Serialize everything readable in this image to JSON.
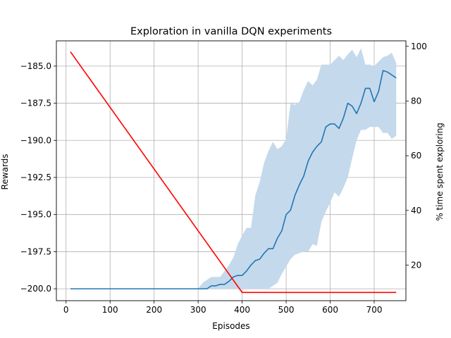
{
  "chart_data": {
    "type": "line",
    "title": "Exploration in vanilla DQN experiments",
    "xlabel": "Episodes",
    "ylabel": "Rewards",
    "y2label": "% time spent exploring",
    "xlim": [
      -22,
      772
    ],
    "ylim": [
      -200.8,
      -183.3
    ],
    "y2lim": [
      7,
      102
    ],
    "grid": true,
    "x_ticks": [
      0,
      100,
      200,
      300,
      400,
      500,
      600,
      700
    ],
    "y_ticks": [
      -200.0,
      -197.5,
      -195.0,
      -192.5,
      -190.0,
      -187.5,
      -185.0
    ],
    "y_tick_labels": [
      "−200.0",
      "−197.5",
      "−195.0",
      "−192.5",
      "−190.0",
      "−187.5",
      "−185.0"
    ],
    "y2_ticks": [
      20,
      40,
      60,
      80,
      100
    ],
    "colors": {
      "reward_line": "#1f77b4",
      "reward_band": "#c5d9ec",
      "exploration_line": "#ff0000",
      "grid": "#b0b0b0"
    },
    "series": [
      {
        "axis": "left",
        "x": [
          10,
          20,
          30,
          40,
          50,
          60,
          70,
          80,
          90,
          100,
          110,
          120,
          130,
          140,
          150,
          160,
          170,
          180,
          190,
          200,
          210,
          220,
          230,
          240,
          250,
          260,
          270,
          280,
          290,
          300,
          310,
          320,
          330,
          340,
          350,
          360,
          370,
          380,
          390,
          400,
          410,
          420,
          430,
          440,
          450,
          460,
          470,
          480,
          490,
          500,
          510,
          520,
          530,
          540,
          550,
          560,
          570,
          580,
          590,
          600,
          610,
          620,
          630,
          640,
          650,
          660,
          670,
          680,
          690,
          700,
          710,
          720,
          730,
          740,
          750
        ],
        "y": [
          -200,
          -200,
          -200,
          -200,
          -200,
          -200,
          -200,
          -200,
          -200,
          -200,
          -200,
          -200,
          -200,
          -200,
          -200,
          -200,
          -200,
          -200,
          -200,
          -200,
          -200,
          -200,
          -200,
          -200,
          -200,
          -200,
          -200,
          -200,
          -200,
          -200,
          -200,
          -200,
          -199.8,
          -199.8,
          -199.7,
          -199.7,
          -199.5,
          -199.2,
          -199.1,
          -199.1,
          -198.8,
          -198.4,
          -198.1,
          -198.0,
          -197.6,
          -197.3,
          -197.3,
          -196.6,
          -196.1,
          -195.0,
          -194.7,
          -193.7,
          -193.0,
          -192.4,
          -191.4,
          -190.8,
          -190.4,
          -190.1,
          -189.1,
          -188.9,
          -188.9,
          -189.2,
          -188.5,
          -187.5,
          -187.7,
          -188.2,
          -187.5,
          -186.5,
          -186.5,
          -187.4,
          -186.7,
          -185.3,
          -185.4,
          -185.6,
          -185.8
        ],
        "y_upper": [
          -200,
          -200,
          -200,
          -200,
          -200,
          -200,
          -200,
          -200,
          -200,
          -200,
          -200,
          -200,
          -200,
          -200,
          -200,
          -200,
          -200,
          -200,
          -200,
          -200,
          -200,
          -200,
          -200,
          -200,
          -200,
          -200,
          -200,
          -200,
          -200,
          -200,
          -199.6,
          -199.4,
          -199.2,
          -199.2,
          -199.2,
          -198.8,
          -198.4,
          -197.9,
          -197.0,
          -196.4,
          -195.9,
          -195.9,
          -193.7,
          -192.8,
          -191.5,
          -190.7,
          -190.1,
          -190.6,
          -190.4,
          -189.9,
          -187.5,
          -187.6,
          -187.4,
          -186.6,
          -186.0,
          -186.3,
          -185.9,
          -184.9,
          -184.9,
          -184.9,
          -184.6,
          -184.3,
          -184.6,
          -184.2,
          -183.9,
          -184.4,
          -183.8,
          -184.9,
          -184.9,
          -185.0,
          -184.7,
          -184.4,
          -184.3,
          -184.1,
          -184.8
        ],
        "y_lower": [
          -200,
          -200,
          -200,
          -200,
          -200,
          -200,
          -200,
          -200,
          -200,
          -200,
          -200,
          -200,
          -200,
          -200,
          -200,
          -200,
          -200,
          -200,
          -200,
          -200,
          -200,
          -200,
          -200,
          -200,
          -200,
          -200,
          -200,
          -200,
          -200,
          -200,
          -200,
          -200,
          -200,
          -200,
          -200,
          -200,
          -200,
          -200,
          -200,
          -200,
          -200,
          -200,
          -200,
          -200,
          -200,
          -200,
          -199.8,
          -199.6,
          -199.0,
          -198.5,
          -198.0,
          -197.7,
          -197.6,
          -197.5,
          -197.5,
          -197.0,
          -197.1,
          -195.5,
          -194.8,
          -194.2,
          -193.5,
          -193.8,
          -193.2,
          -192.5,
          -191.2,
          -190.0,
          -189.3,
          -189.3,
          -189.1,
          -189.1,
          -189.1,
          -189.5,
          -189.5,
          -189.9,
          -189.7
        ]
      },
      {
        "axis": "right",
        "x": [
          10,
          400,
          750
        ],
        "y": [
          98,
          10,
          10
        ]
      }
    ]
  }
}
